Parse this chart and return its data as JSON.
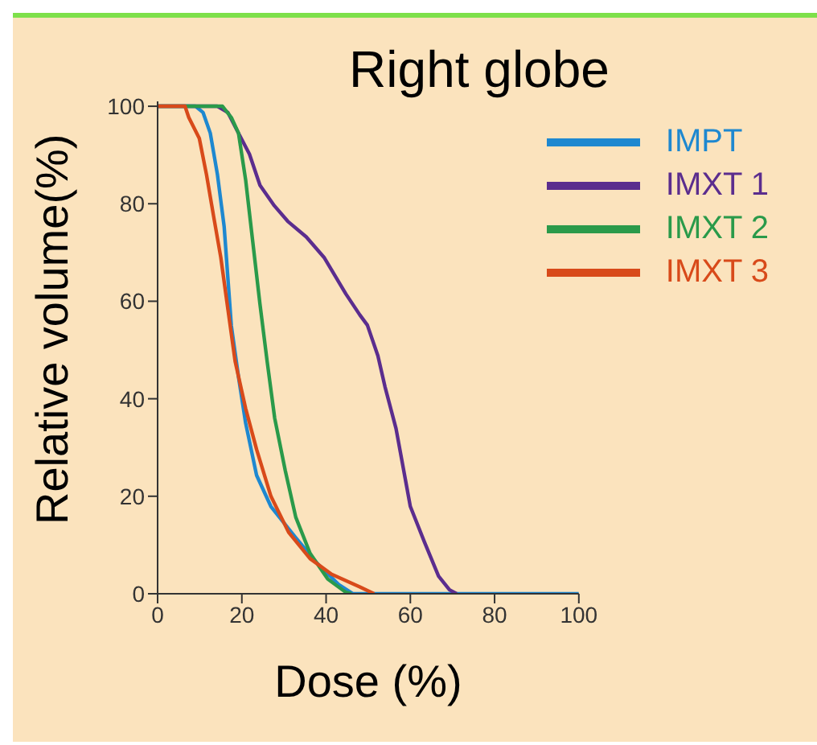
{
  "chart_data": {
    "type": "line",
    "title": "Right globe",
    "xlabel": "Dose (%)",
    "ylabel": "Relative volume(%)",
    "xlim": [
      0,
      100
    ],
    "xticks": [
      0,
      20,
      40,
      60,
      80,
      100
    ],
    "ylim": [
      0,
      101
    ],
    "yticks": [
      0,
      20,
      40,
      60,
      80,
      100
    ],
    "grid": false,
    "legend": "top right",
    "marker": "none",
    "line_style": "solid",
    "series": [
      {
        "name": "IMPT",
        "color": "#1e88d0",
        "x": [
          0,
          9,
          10.8,
          12.5,
          14.2,
          15.8,
          17.5,
          19.2,
          20.9,
          23.5,
          26.9,
          32.8,
          37.9,
          43,
          46.4,
          100
        ],
        "values": [
          100,
          100,
          98.7,
          94.5,
          86,
          75.3,
          55,
          44.5,
          35,
          24.3,
          17.9,
          11.5,
          6.2,
          1.9,
          0,
          0
        ]
      },
      {
        "name": "IMXT 1",
        "color": "#5b2d8e",
        "x": [
          0,
          14.2,
          16.7,
          19.2,
          21.8,
          24.3,
          27.7,
          30.9,
          35.3,
          39.6,
          44.7,
          48,
          49.8,
          52.3,
          54,
          56.6,
          60,
          63.4,
          66.7,
          69.3,
          71
        ],
        "values": [
          100,
          100,
          98.7,
          94.5,
          90.2,
          83.8,
          79.6,
          76.4,
          73.2,
          68.9,
          61.5,
          57.2,
          55.1,
          48.8,
          42.4,
          33.9,
          17.9,
          10.5,
          3.6,
          0.8,
          0
        ]
      },
      {
        "name": "IMXT 2",
        "color": "#2a9a4a",
        "x": [
          0,
          15.4,
          17.5,
          19.2,
          20.9,
          22.6,
          24.3,
          26,
          27.8,
          30.3,
          32.8,
          36.2,
          40.4,
          44.7,
          46
        ],
        "values": [
          100,
          100,
          97.7,
          94.5,
          84.9,
          72.1,
          59.4,
          47.7,
          36,
          25.3,
          15.7,
          8.3,
          3,
          0.3,
          0
        ]
      },
      {
        "name": "IMXT 3",
        "color": "#d84a1a",
        "x": [
          0,
          6.5,
          7.4,
          9.9,
          11.6,
          13.3,
          15,
          16.7,
          18.4,
          20.9,
          23.5,
          26.9,
          31.1,
          36.2,
          41.3,
          48,
          51.4
        ],
        "values": [
          100,
          100,
          97.7,
          93.4,
          86,
          77.4,
          69,
          58.3,
          47.7,
          38,
          29.6,
          20,
          12.6,
          7.2,
          4,
          1.4,
          0
        ]
      }
    ]
  }
}
